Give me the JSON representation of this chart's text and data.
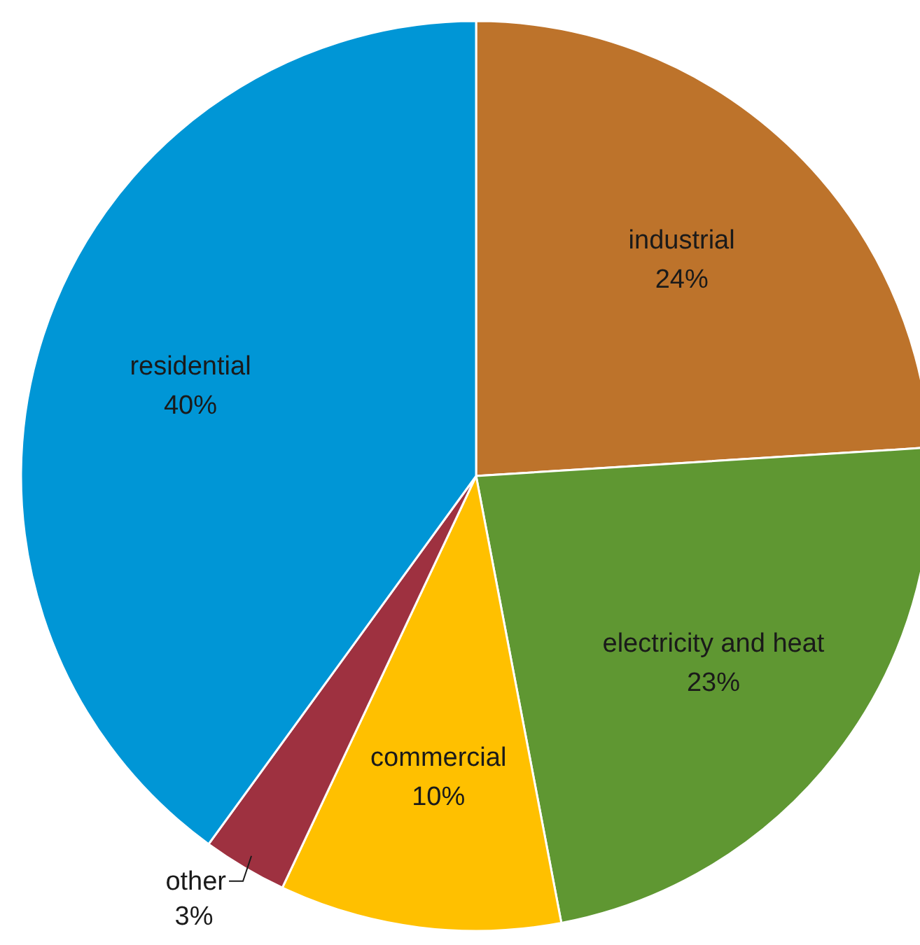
{
  "chart_data": {
    "type": "pie",
    "categories": [
      "industrial",
      "electricity and heat",
      "commercial",
      "other",
      "residential"
    ],
    "values": [
      24,
      23,
      10,
      3,
      40
    ],
    "value_labels": [
      "24%",
      "23%",
      "10%",
      "3%",
      "40%"
    ],
    "colors": [
      "#bd732b",
      "#5f9732",
      "#ffc000",
      "#9e3140",
      "#0096d6"
    ]
  }
}
